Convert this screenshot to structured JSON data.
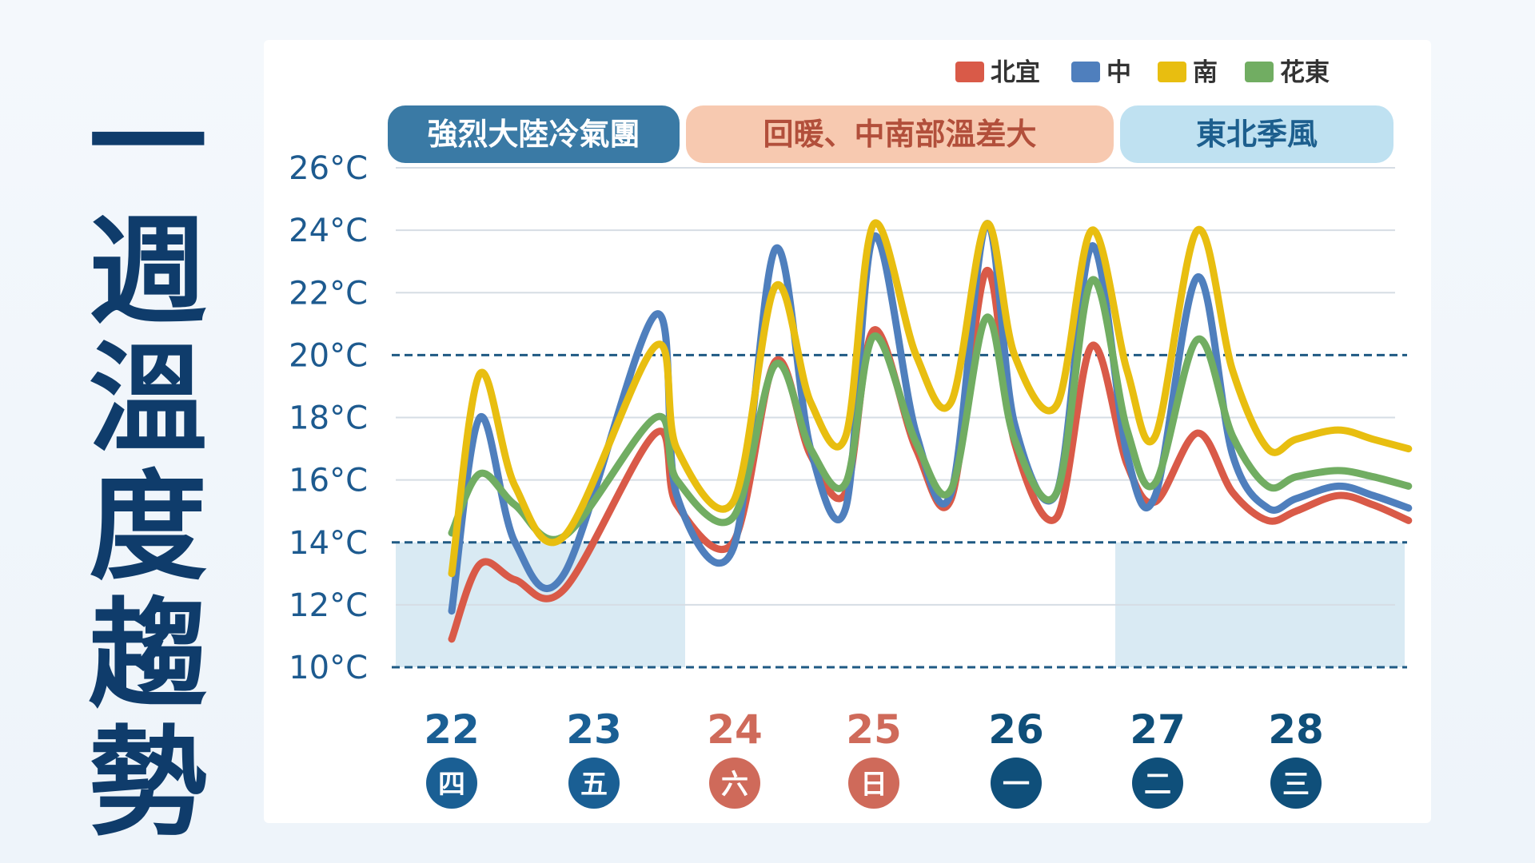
{
  "title_chars": [
    "一",
    "週",
    "溫",
    "度",
    "趨",
    "勢"
  ],
  "colors": {
    "title": "#0f3c6b",
    "axis_text": "#1d5a8f",
    "weekday_blue": "#1a5f94",
    "weekend_red": "#cf6a5a",
    "threshold_line": "#1f5a84",
    "shade": "#d2e6f1"
  },
  "legend": [
    {
      "name": "北宜",
      "color": "#d95a48"
    },
    {
      "name": "中",
      "color": "#4f7fbd"
    },
    {
      "name": "南",
      "color": "#e8be10"
    },
    {
      "name": "花東",
      "color": "#71ad62"
    }
  ],
  "periods": [
    {
      "label": "強烈大陸冷氣團",
      "bg": "#3a7aa5",
      "fg": "#ffffff"
    },
    {
      "label": "回暖、中南部溫差大",
      "bg": "#f7c9b0",
      "fg": "#b24f3b"
    },
    {
      "label": "東北季風",
      "bg": "#bfe1f1",
      "fg": "#1d5f8e"
    }
  ],
  "days": [
    {
      "day": "22",
      "weekday": "四",
      "weekend": false
    },
    {
      "day": "23",
      "weekday": "五",
      "weekend": false
    },
    {
      "day": "24",
      "weekday": "六",
      "weekend": true
    },
    {
      "day": "25",
      "weekday": "日",
      "weekend": true
    },
    {
      "day": "26",
      "weekday": "一",
      "weekend": false
    },
    {
      "day": "27",
      "weekday": "二",
      "weekend": false
    },
    {
      "day": "28",
      "weekday": "三",
      "weekend": false
    }
  ],
  "chart_data": {
    "type": "line",
    "title": "一週溫度趨勢",
    "y_ticks": [
      "10°C",
      "12°C",
      "14°C",
      "16°C",
      "18°C",
      "20°C",
      "22°C",
      "24°C",
      "26°C"
    ],
    "ylim": [
      10,
      26
    ],
    "x": [
      0,
      0.2,
      0.45,
      0.8,
      1.45,
      1.6,
      2.0,
      2.3,
      2.55,
      2.8,
      3.0,
      3.3,
      3.55,
      3.8,
      4.0,
      4.3,
      4.55,
      4.8,
      5.0,
      5.3,
      5.55,
      5.8,
      6.0,
      6.3,
      6.55,
      6.8
    ],
    "x_range": [
      0,
      6.8
    ],
    "threshold_lines": [
      10,
      14,
      20
    ],
    "grid": true,
    "legend_position": "top-right",
    "series": [
      {
        "name": "北宜",
        "values": [
          10.9,
          13.3,
          12.8,
          12.5,
          17.5,
          15.2,
          14.0,
          19.8,
          16.8,
          15.6,
          20.8,
          17.0,
          15.4,
          22.7,
          17.2,
          14.8,
          20.3,
          16.5,
          15.3,
          17.5,
          15.6,
          14.7,
          15.0,
          15.5,
          15.2,
          14.7
        ]
      },
      {
        "name": "中",
        "values": [
          11.8,
          18.0,
          14.0,
          13.0,
          21.3,
          15.5,
          13.8,
          23.4,
          17.0,
          15.1,
          23.8,
          17.5,
          15.6,
          24.2,
          17.8,
          15.6,
          23.5,
          16.8,
          15.5,
          22.5,
          16.8,
          15.1,
          15.4,
          15.8,
          15.5,
          15.1
        ]
      },
      {
        "name": "南",
        "values": [
          13.0,
          19.4,
          15.8,
          14.2,
          20.3,
          17.0,
          15.3,
          22.2,
          18.5,
          17.4,
          24.2,
          20.0,
          18.5,
          24.2,
          20.0,
          18.4,
          24.0,
          19.5,
          17.4,
          24.0,
          19.5,
          17.0,
          17.3,
          17.6,
          17.3,
          17.0
        ]
      },
      {
        "name": "花東",
        "values": [
          14.3,
          16.2,
          15.2,
          14.2,
          18.0,
          16.0,
          14.8,
          19.7,
          17.0,
          15.9,
          20.6,
          17.2,
          15.7,
          21.2,
          17.3,
          15.6,
          22.4,
          17.6,
          15.9,
          20.5,
          17.4,
          15.8,
          16.1,
          16.3,
          16.1,
          15.8
        ]
      }
    ]
  }
}
